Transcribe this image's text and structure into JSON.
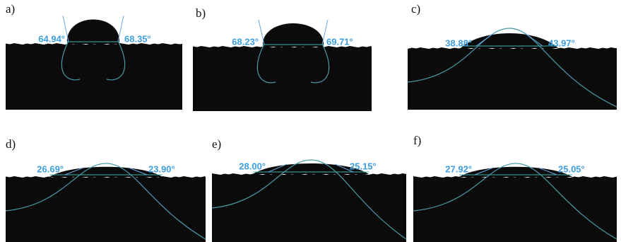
{
  "panels": [
    {
      "label": "a)",
      "left_angle": "64.94°",
      "right_angle": "68.35°"
    },
    {
      "label": "b)",
      "left_angle": "68.23°",
      "right_angle": "69.71°"
    },
    {
      "label": "c)",
      "left_angle": "38.88°",
      "right_angle": "43.97°"
    },
    {
      "label": "d)",
      "left_angle": "26.69°",
      "right_angle": "23.90°"
    },
    {
      "label": "e)",
      "left_angle": "28.00°",
      "right_angle": "25.15°"
    },
    {
      "label": "f)",
      "left_angle": "27.92°",
      "right_angle": "25.05°"
    }
  ]
}
